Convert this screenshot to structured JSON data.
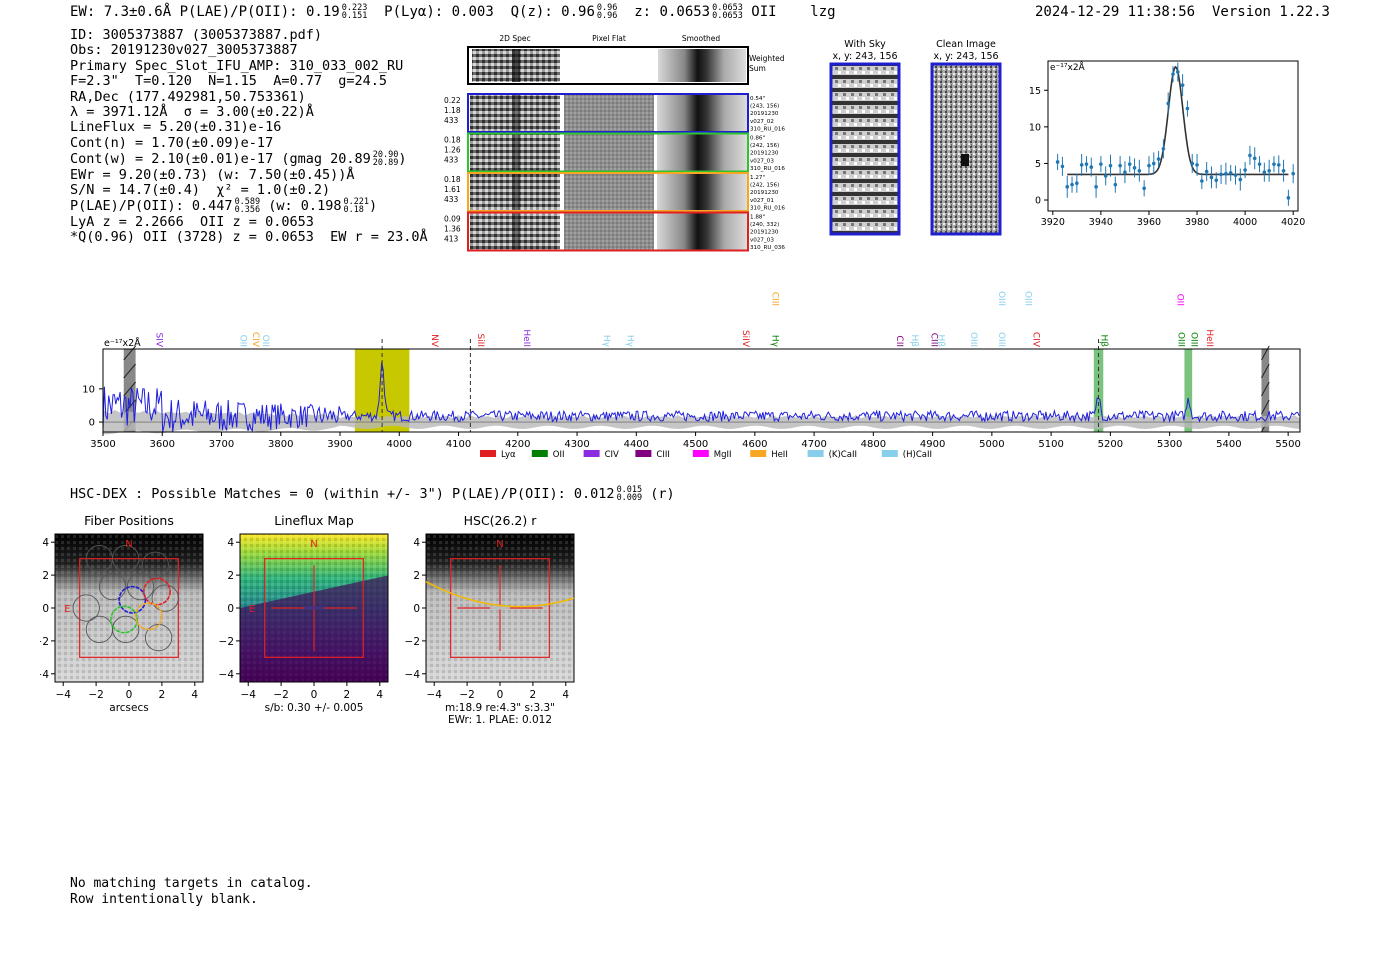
{
  "header": {
    "summary": "EW: 7.3±0.6Å  P(LAE)/P(OII): 0.19",
    "plae_hi": "0.223",
    "plae_lo": "0.151",
    "plya": "P(Lyα): 0.003",
    "qz": "Q(z): 0.96",
    "qz_hi": "0.96",
    "qz_lo": "0.96",
    "z": "z: 0.0653",
    "z_hi": "0.0653",
    "z_lo": "0.0653",
    "line": "OII",
    "flag": "lzg",
    "timestamp": "2024-12-29 11:38:56",
    "version": "Version 1.22.3"
  },
  "info": {
    "id": "ID: 3005373887 (3005373887.pdf)",
    "obs": "Obs: 20191230v027_3005373887",
    "primary": "Primary Spec_Slot_IFU_AMP: 310_033_002_RU",
    "fit": "F=2.3\"  T=0.120  N=1.15  A=0.77  g=24.5",
    "radec": "RA,Dec (177.492981,50.753361)",
    "lambda": "λ = 3971.12Å  σ = 3.00(±0.22)Å",
    "lineflux": "LineFlux = 5.20(±0.31)e-16",
    "contn": "Cont(n) = 1.70(±0.09)e-17",
    "contw": "Cont(w) = 2.10(±0.01)e-17 (gmag 20.89",
    "gmag_hi": "20.90",
    "gmag_lo": "20.89",
    "ewr": "EWr = 9.20(±0.73) (w: 7.50(±0.45))Å",
    "sn": "S/N = 14.7(±0.4)  χ² = 1.0(±0.2)",
    "plae": "P(LAE)/P(OII): 0.447",
    "plae_hi": "0.589",
    "plae_lo": "0.356",
    "plae_w": "(w: 0.198",
    "plae_w_hi": "0.221",
    "plae_w_lo": "0.18",
    "lya": "LyA z = 2.2666  OII z = 0.0653",
    "q": "*Q(0.96) OII (3728) z = 0.0653  EW r = 23.0Å"
  },
  "cutouts": {
    "col_labels": [
      "2D Spec",
      "Pixel Flat",
      "Smoothed"
    ],
    "weighted": "Weighted\nSum",
    "rows": [
      {
        "color": "#1f1fcf",
        "left": [
          "0.22",
          "1.18",
          "433"
        ],
        "right": [
          "0.54\"",
          "(243, 156)",
          "20191230",
          "v027_02",
          "310_RU_016"
        ]
      },
      {
        "color": "#2ec52e",
        "left": [
          "0.18",
          "1.26",
          "433"
        ],
        "right": [
          "0.86\"",
          "(242, 156)",
          "20191230",
          "v027_03",
          "310_RU_016"
        ]
      },
      {
        "color": "#f5a623",
        "left": [
          "0.18",
          "1.61",
          "433"
        ],
        "right": [
          "1.27\"",
          "(242, 156)",
          "20191230",
          "v027_01",
          "310_RU_016"
        ]
      },
      {
        "color": "#e02020",
        "left": [
          "0.09",
          "1.36",
          "413"
        ],
        "right": [
          "1.88\"",
          "(240, 332)",
          "20191230",
          "v027_03",
          "310_RU_036"
        ]
      }
    ]
  },
  "sky": {
    "with_sky": "With Sky",
    "with_sky_xy": "x, y: 243, 156",
    "clean": "Clean Image",
    "clean_xy": "x, y: 243, 156"
  },
  "chart_data": [
    {
      "type": "line",
      "title": "",
      "ylabel": "e⁻¹⁷x2Å",
      "xlim": [
        3918,
        4022
      ],
      "ylim": [
        -1.5,
        19
      ],
      "xticks": [
        3920,
        3940,
        3960,
        3980,
        4000,
        4020
      ],
      "yticks": [
        0,
        5,
        10,
        15
      ],
      "model": {
        "continuum": 3.5,
        "peak": 18.2,
        "center": 3971.1,
        "sigma": 3.0
      },
      "x": [
        3922,
        3924,
        3926,
        3928,
        3930,
        3932,
        3934,
        3936,
        3938,
        3940,
        3942,
        3944,
        3946,
        3948,
        3950,
        3952,
        3954,
        3956,
        3958,
        3960,
        3962,
        3964,
        3966,
        3968,
        3970,
        3972,
        3974,
        3976,
        3978,
        3980,
        3982,
        3984,
        3986,
        3988,
        3990,
        3992,
        3994,
        3996,
        3998,
        4000,
        4002,
        4004,
        4006,
        4008,
        4010,
        4012,
        4014,
        4016,
        4018,
        4020
      ],
      "y": [
        5.2,
        4.6,
        1.8,
        2.1,
        2.3,
        4.8,
        4.9,
        4.5,
        1.8,
        4.9,
        3.3,
        4.7,
        2.1,
        4.7,
        3.8,
        4.9,
        4.4,
        4.0,
        1.6,
        4.7,
        5.0,
        5.6,
        7.0,
        13.2,
        17.2,
        17.5,
        15.7,
        12.5,
        5.0,
        4.8,
        2.6,
        3.9,
        3.1,
        2.7,
        3.5,
        3.6,
        3.7,
        3.4,
        2.8,
        4.1,
        6.1,
        5.7,
        4.9,
        3.8,
        4.0,
        4.9,
        4.8,
        4.0,
        0.3,
        3.6
      ]
    },
    {
      "type": "line",
      "title": "",
      "ylabel": "e⁻¹⁷x2Å",
      "xlim": [
        3500,
        5520
      ],
      "ylim": [
        -3,
        22
      ],
      "xticks": [
        3500,
        3600,
        3700,
        3800,
        3900,
        4000,
        4100,
        4200,
        4300,
        4400,
        4500,
        4600,
        4700,
        4800,
        4900,
        5000,
        5100,
        5200,
        5300,
        5400,
        5500
      ],
      "yticks": [
        0,
        10
      ],
      "highlight": {
        "x0": 3925,
        "x1": 4017,
        "color": "#c8c800"
      },
      "green_bands": [
        [
          5172,
          5188
        ],
        [
          5325,
          5338
        ]
      ],
      "hatched": [
        [
          3535,
          3555
        ],
        [
          5455,
          5468
        ]
      ],
      "dashed_lines": [
        3971,
        4120,
        5180
      ],
      "line_labels": [
        {
          "text": "SIV",
          "x": 3585,
          "color": "#8a2be2",
          "row": 0
        },
        {
          "text": "OII",
          "x": 3727,
          "color": "#87ceeb",
          "row": 0
        },
        {
          "text": "CIV",
          "x": 3748,
          "color": "#f5a623",
          "row": 0
        },
        {
          "text": "OII",
          "x": 3765,
          "color": "#87ceeb",
          "row": 0
        },
        {
          "text": "NV",
          "x": 4050,
          "color": "#e02020",
          "row": 0
        },
        {
          "text": "SiII",
          "x": 4128,
          "color": "#e02020",
          "row": 0
        },
        {
          "text": "HeII",
          "x": 4205,
          "color": "#8a2be2",
          "row": 0
        },
        {
          "text": "Hγ",
          "x": 4340,
          "color": "#87ceeb",
          "row": 0
        },
        {
          "text": "Hγ",
          "x": 4380,
          "color": "#87ceeb",
          "row": 0
        },
        {
          "text": "SiIV",
          "x": 4575,
          "color": "#e02020",
          "row": 0
        },
        {
          "text": "CIII",
          "x": 4625,
          "color": "#f5a623",
          "row": 1
        },
        {
          "text": "Hγ",
          "x": 4625,
          "color": "#008000",
          "row": 0
        },
        {
          "text": "CII",
          "x": 4835,
          "color": "#800080",
          "row": 0
        },
        {
          "text": "Hβ",
          "x": 4860,
          "color": "#87ceeb",
          "row": 0
        },
        {
          "text": "CIII",
          "x": 4893,
          "color": "#800080",
          "row": 0
        },
        {
          "text": "Hβ",
          "x": 4905,
          "color": "#87ceeb",
          "row": 0
        },
        {
          "text": "OIII",
          "x": 4960,
          "color": "#87ceeb",
          "row": 0
        },
        {
          "text": "OIII",
          "x": 5007,
          "color": "#87ceeb",
          "row": 0
        },
        {
          "text": "OIII",
          "x": 5007,
          "color": "#87ceeb",
          "row": 1
        },
        {
          "text": "OIII",
          "x": 5052,
          "color": "#87ceeb",
          "row": 1
        },
        {
          "text": "CIV",
          "x": 5065,
          "color": "#e02020",
          "row": 0
        },
        {
          "text": "Hβ",
          "x": 5180,
          "color": "#008000",
          "row": 0
        },
        {
          "text": "OII",
          "x": 5308,
          "color": "#ff00ff",
          "row": 1
        },
        {
          "text": "OIII",
          "x": 5310,
          "color": "#008000",
          "row": 0
        },
        {
          "text": "OIII",
          "x": 5332,
          "color": "#008000",
          "row": 0
        },
        {
          "text": "HeII",
          "x": 5358,
          "color": "#e02020",
          "row": 0
        }
      ],
      "legend": [
        {
          "name": "Lyα",
          "color": "#e02020"
        },
        {
          "name": "OII",
          "color": "#008000"
        },
        {
          "name": "CIV",
          "color": "#8a2be2"
        },
        {
          "name": "CIII",
          "color": "#800080"
        },
        {
          "name": "MgII",
          "color": "#ff00ff"
        },
        {
          "name": "HeII",
          "color": "#f5a623"
        },
        {
          "name": "(K)CaII",
          "color": "#87ceeb"
        },
        {
          "name": "(H)CaII",
          "color": "#87ceeb"
        }
      ],
      "legend_position": "bottom-center"
    }
  ],
  "hsc_line": {
    "text": "HSC-DEX : Possible Matches = 0 (within +/- 3\")  P(LAE)/P(OII): 0.012",
    "hi": "0.015",
    "lo": "0.009",
    "band": "(r)"
  },
  "panels": [
    {
      "title": "Fiber Positions",
      "xlabel": "arcsecs",
      "ticks": [
        -4,
        -2,
        0,
        2,
        4
      ],
      "north": "N",
      "east": "E"
    },
    {
      "title": "Lineflux Map",
      "xlabel": "s/b: 0.30 +/- 0.005",
      "ticks": [
        -4,
        -2,
        0,
        2,
        4
      ],
      "north": "N",
      "east": "E"
    },
    {
      "title": "HSC(26.2) r",
      "xlabel": "m:18.9  re:4.3\"  s:3.3\"",
      "xlabel2": "EWr: 1. PLAE: 0.012",
      "ticks": [
        -4,
        -2,
        0,
        2,
        4
      ],
      "north": "N"
    }
  ],
  "bottom": {
    "line1": "No matching targets in catalog.",
    "line2": "Row intentionally blank."
  }
}
